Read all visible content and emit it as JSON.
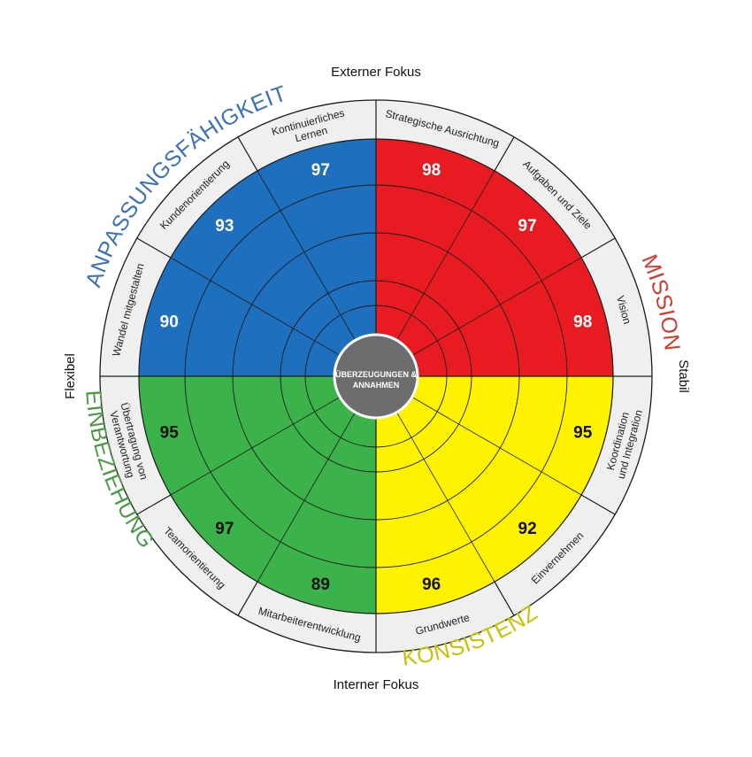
{
  "axes": {
    "top": "Externer Fokus",
    "bottom": "Interner Fokus",
    "left": "Flexibel",
    "right": "Stabil"
  },
  "center": {
    "line1": "ÜBERZEUGUNGEN &",
    "line2": "ANNAHMEN"
  },
  "colors": {
    "blue": "#1e6fbe",
    "red": "#e81b23",
    "green": "#3bb34a",
    "yellow": "#fff200",
    "ring": "#efefef",
    "center": "#6d6d70",
    "title_blue": "#3a72b8",
    "title_red": "#d23a2e",
    "title_green": "#4a9a45",
    "title_yellow": "#c7c300"
  },
  "quadrants": [
    {
      "title": "MISSION",
      "color": "red",
      "segments": [
        {
          "label": "Strategische Ausrichtung",
          "score": "98"
        },
        {
          "label": "Aufgaben und Ziele",
          "score": "97"
        },
        {
          "label": "Vision",
          "score": "98"
        }
      ]
    },
    {
      "title": "KONSISTENZ",
      "color": "yellow",
      "segments": [
        {
          "label": "Koordination und Integration",
          "score": "95"
        },
        {
          "label": "Einvernehmen",
          "score": "92"
        },
        {
          "label": "Grundwerte",
          "score": "96"
        }
      ]
    },
    {
      "title": "EINBEZIEHUNG",
      "color": "green",
      "segments": [
        {
          "label": "Mitarbeiterentwicklung",
          "score": "89"
        },
        {
          "label": "Teamorientierung",
          "score": "97"
        },
        {
          "label": "Übertragung von Verantwortung",
          "score": "95"
        }
      ]
    },
    {
      "title": "ANPASSUNGSFÄHIGKEIT",
      "color": "blue",
      "segments": [
        {
          "label": "Wandel mitgestalten",
          "score": "90"
        },
        {
          "label": "Kundenorientierung",
          "score": "93"
        },
        {
          "label": "Kontinuierliches Lernen",
          "score": "97"
        }
      ]
    }
  ]
}
